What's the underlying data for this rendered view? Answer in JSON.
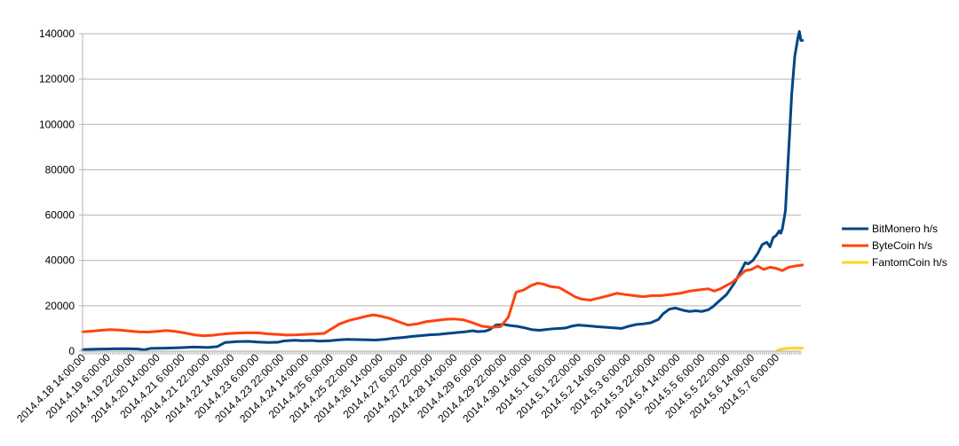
{
  "chart_data": {
    "type": "line",
    "grid": true,
    "legend_position": "right",
    "ylim": [
      0,
      140000
    ],
    "yticks": [
      0,
      20000,
      40000,
      60000,
      80000,
      100000,
      120000,
      140000
    ],
    "x_range": [
      0,
      464
    ],
    "x_tick_labels": [
      {
        "x": 0,
        "label": "2014.4.18 14:00:00"
      },
      {
        "x": 16,
        "label": "2014.4.19 6:00:00"
      },
      {
        "x": 32,
        "label": "2014.4.19 22:00:00"
      },
      {
        "x": 48,
        "label": "2014.4.20 14:00:00"
      },
      {
        "x": 64,
        "label": "2014.4.21 6:00:00"
      },
      {
        "x": 80,
        "label": "2014.4.21 22:00:00"
      },
      {
        "x": 96,
        "label": "2014.4.22 14:00:00"
      },
      {
        "x": 112,
        "label": "2014.4.23 6:00:00"
      },
      {
        "x": 128,
        "label": "2014.4.23 22:00:00"
      },
      {
        "x": 144,
        "label": "2014.4.24 14:00:00"
      },
      {
        "x": 160,
        "label": "2014.4.25 6:00:00"
      },
      {
        "x": 176,
        "label": "2014.4.25 22:00:00"
      },
      {
        "x": 192,
        "label": "2014.4.26 14:00:00"
      },
      {
        "x": 208,
        "label": "2014.4.27 6:00:00"
      },
      {
        "x": 224,
        "label": "2014.4.27 22:00:00"
      },
      {
        "x": 240,
        "label": "2014.4.28 14:00:00"
      },
      {
        "x": 256,
        "label": "2014.4.29 6:00:00"
      },
      {
        "x": 272,
        "label": "2014.4.29 22:00:00"
      },
      {
        "x": 288,
        "label": "2014.4.30 14:00:00"
      },
      {
        "x": 304,
        "label": "2014.5.1 6:00:00"
      },
      {
        "x": 320,
        "label": "2014.5.1 22:00:00"
      },
      {
        "x": 336,
        "label": "2014.5.2 14:00:00"
      },
      {
        "x": 352,
        "label": "2014.5.3 6:00:00"
      },
      {
        "x": 368,
        "label": "2014.5.3 22:00:00"
      },
      {
        "x": 384,
        "label": "2014.5.4 14:00:00"
      },
      {
        "x": 400,
        "label": "2014.5.5 6:00:00"
      },
      {
        "x": 416,
        "label": "2014.5.5 22:00:00"
      },
      {
        "x": 432,
        "label": "2014.5.6 14:00:00"
      },
      {
        "x": 448,
        "label": "2014.5.7 6:00:00"
      }
    ],
    "series": [
      {
        "name": "BitMonero h/s",
        "color": "#004586",
        "points": [
          [
            0,
            700
          ],
          [
            9,
            900
          ],
          [
            18,
            1000
          ],
          [
            27,
            1100
          ],
          [
            35,
            1000
          ],
          [
            40,
            600
          ],
          [
            44,
            1200
          ],
          [
            54,
            1300
          ],
          [
            63,
            1500
          ],
          [
            72,
            1800
          ],
          [
            81,
            1600
          ],
          [
            87,
            2000
          ],
          [
            92,
            3800
          ],
          [
            100,
            4200
          ],
          [
            107,
            4300
          ],
          [
            113,
            4000
          ],
          [
            120,
            3800
          ],
          [
            126,
            3900
          ],
          [
            130,
            4500
          ],
          [
            137,
            4800
          ],
          [
            142,
            4600
          ],
          [
            148,
            4700
          ],
          [
            153,
            4400
          ],
          [
            160,
            4600
          ],
          [
            166,
            5000
          ],
          [
            171,
            5200
          ],
          [
            177,
            5100
          ],
          [
            184,
            5000
          ],
          [
            189,
            4900
          ],
          [
            195,
            5200
          ],
          [
            200,
            5600
          ],
          [
            207,
            6000
          ],
          [
            213,
            6500
          ],
          [
            218,
            6800
          ],
          [
            224,
            7200
          ],
          [
            230,
            7400
          ],
          [
            236,
            7800
          ],
          [
            242,
            8200
          ],
          [
            247,
            8500
          ],
          [
            252,
            9000
          ],
          [
            255,
            8600
          ],
          [
            260,
            8800
          ],
          [
            263,
            9500
          ],
          [
            267,
            11500
          ],
          [
            272,
            11800
          ],
          [
            276,
            11300
          ],
          [
            281,
            10900
          ],
          [
            286,
            10200
          ],
          [
            290,
            9500
          ],
          [
            295,
            9200
          ],
          [
            299,
            9500
          ],
          [
            303,
            9800
          ],
          [
            308,
            10000
          ],
          [
            312,
            10200
          ],
          [
            316,
            11000
          ],
          [
            320,
            11500
          ],
          [
            326,
            11200
          ],
          [
            332,
            10800
          ],
          [
            338,
            10500
          ],
          [
            344,
            10200
          ],
          [
            348,
            10000
          ],
          [
            354,
            11200
          ],
          [
            358,
            11800
          ],
          [
            362,
            12000
          ],
          [
            367,
            12500
          ],
          [
            372,
            14000
          ],
          [
            375,
            16500
          ],
          [
            379,
            18500
          ],
          [
            383,
            19000
          ],
          [
            388,
            18000
          ],
          [
            392,
            17500
          ],
          [
            396,
            17800
          ],
          [
            400,
            17500
          ],
          [
            404,
            18200
          ],
          [
            407,
            19500
          ],
          [
            411,
            22000
          ],
          [
            416,
            25000
          ],
          [
            421,
            30000
          ],
          [
            425,
            35000
          ],
          [
            428,
            39000
          ],
          [
            430,
            38500
          ],
          [
            433,
            40000
          ],
          [
            436,
            43000
          ],
          [
            439,
            47000
          ],
          [
            442,
            48000
          ],
          [
            444,
            46000
          ],
          [
            446,
            50000
          ],
          [
            448,
            51000
          ],
          [
            450,
            53000
          ],
          [
            451,
            52000
          ],
          [
            452,
            54000
          ],
          [
            454,
            62000
          ],
          [
            455,
            75000
          ],
          [
            457,
            100000
          ],
          [
            458,
            113000
          ],
          [
            460,
            130000
          ],
          [
            462,
            138000
          ],
          [
            463,
            141000
          ],
          [
            464,
            137000
          ],
          [
            465,
            137000
          ]
        ]
      },
      {
        "name": "ByteCoin h/s",
        "color": "#ff420e",
        "points": [
          [
            0,
            8500
          ],
          [
            6,
            8800
          ],
          [
            12,
            9200
          ],
          [
            18,
            9500
          ],
          [
            24,
            9300
          ],
          [
            30,
            8900
          ],
          [
            36,
            8500
          ],
          [
            42,
            8400
          ],
          [
            48,
            8700
          ],
          [
            54,
            9100
          ],
          [
            60,
            8700
          ],
          [
            66,
            8000
          ],
          [
            72,
            7200
          ],
          [
            78,
            6800
          ],
          [
            84,
            7000
          ],
          [
            90,
            7500
          ],
          [
            96,
            7800
          ],
          [
            102,
            8000
          ],
          [
            108,
            8100
          ],
          [
            114,
            8000
          ],
          [
            120,
            7600
          ],
          [
            126,
            7400
          ],
          [
            132,
            7100
          ],
          [
            138,
            7200
          ],
          [
            144,
            7400
          ],
          [
            150,
            7600
          ],
          [
            156,
            7800
          ],
          [
            160,
            9500
          ],
          [
            166,
            12000
          ],
          [
            172,
            13500
          ],
          [
            178,
            14500
          ],
          [
            184,
            15500
          ],
          [
            188,
            16000
          ],
          [
            192,
            15500
          ],
          [
            198,
            14500
          ],
          [
            204,
            13000
          ],
          [
            210,
            11500
          ],
          [
            216,
            12000
          ],
          [
            222,
            13000
          ],
          [
            228,
            13500
          ],
          [
            234,
            14000
          ],
          [
            240,
            14200
          ],
          [
            246,
            13800
          ],
          [
            252,
            12500
          ],
          [
            258,
            11000
          ],
          [
            264,
            10500
          ],
          [
            270,
            10800
          ],
          [
            275,
            15000
          ],
          [
            280,
            26000
          ],
          [
            285,
            27000
          ],
          [
            290,
            29000
          ],
          [
            294,
            30000
          ],
          [
            298,
            29500
          ],
          [
            302,
            28500
          ],
          [
            308,
            28000
          ],
          [
            313,
            26000
          ],
          [
            318,
            24000
          ],
          [
            322,
            23000
          ],
          [
            328,
            22500
          ],
          [
            334,
            23500
          ],
          [
            340,
            24500
          ],
          [
            345,
            25500
          ],
          [
            350,
            25000
          ],
          [
            356,
            24500
          ],
          [
            362,
            24000
          ],
          [
            368,
            24500
          ],
          [
            374,
            24500
          ],
          [
            380,
            25000
          ],
          [
            386,
            25500
          ],
          [
            392,
            26500
          ],
          [
            398,
            27000
          ],
          [
            404,
            27500
          ],
          [
            408,
            26500
          ],
          [
            412,
            27500
          ],
          [
            416,
            29000
          ],
          [
            420,
            30500
          ],
          [
            424,
            33000
          ],
          [
            428,
            35500
          ],
          [
            432,
            36000
          ],
          [
            436,
            37500
          ],
          [
            440,
            36000
          ],
          [
            444,
            37000
          ],
          [
            448,
            36500
          ],
          [
            452,
            35500
          ],
          [
            456,
            37000
          ],
          [
            460,
            37500
          ],
          [
            465,
            38000
          ]
        ]
      },
      {
        "name": "FantomCoin h/s",
        "color": "#ffd320",
        "points": [
          [
            449,
            400
          ],
          [
            452,
            1000
          ],
          [
            455,
            1200
          ],
          [
            458,
            1300
          ],
          [
            461,
            1300
          ],
          [
            465,
            1300
          ]
        ]
      }
    ]
  }
}
